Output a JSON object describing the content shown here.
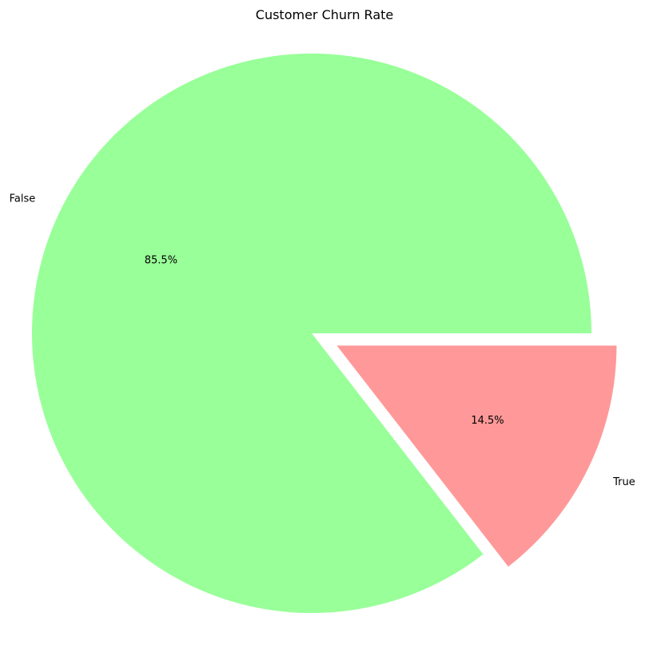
{
  "chart_data": {
    "type": "pie",
    "title": "Customer Churn Rate",
    "slices": [
      {
        "label": "False",
        "value": 85.5,
        "pct_label": "85.5%",
        "color": "#99ff99",
        "exploded": false
      },
      {
        "label": "True",
        "value": 14.5,
        "pct_label": "14.5%",
        "color": "#ff9999",
        "exploded": true
      }
    ],
    "start_angle_deg": 0,
    "direction": "counterclockwise",
    "legend": "none"
  }
}
